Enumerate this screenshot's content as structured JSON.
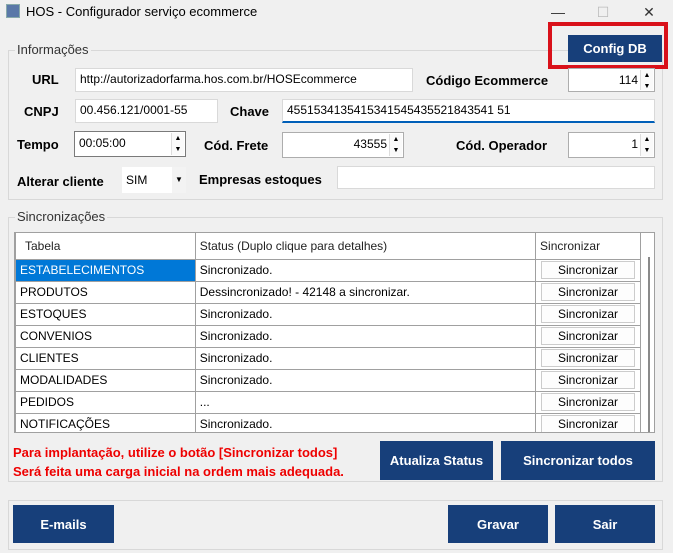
{
  "window": {
    "title": "HOS - Configurador serviço ecommerce",
    "minimize": "—",
    "maximize": "☐",
    "close": "✕"
  },
  "info": {
    "group_label": "Informações",
    "config_db": "Config DB",
    "url_label": "URL",
    "url": "http://autorizadorfarma.hos.com.br/HOSEcommerce",
    "codigo_ecommerce_label": "Código Ecommerce",
    "codigo_ecommerce": "114",
    "cnpj_label": "CNPJ",
    "cnpj": "00.456.121/0001-55",
    "chave_label": "Chave",
    "chave": "4551534135415341545435521843541 51",
    "tempo_label": "Tempo",
    "tempo": "00:05:00",
    "frete_label": "Cód. Frete",
    "frete": "43555",
    "operador_label": "Cód. Operador",
    "operador": "1",
    "alterar_label": "Alterar cliente",
    "alterar": "SIM",
    "empresas_label": "Empresas estoques",
    "empresas": ""
  },
  "sync": {
    "group_label": "Sincronizações",
    "columns": [
      "Tabela",
      "Status (Duplo clique para detalhes)",
      "Sincronizar"
    ],
    "rows": [
      {
        "tabela": "ESTABELECIMENTOS",
        "status": "Sincronizado.",
        "button": "Sincronizar"
      },
      {
        "tabela": "PRODUTOS",
        "status": "Dessincronizado! - 42148 a sincronizar.",
        "button": "Sincronizar"
      },
      {
        "tabela": "ESTOQUES",
        "status": "Sincronizado.",
        "button": "Sincronizar"
      },
      {
        "tabela": "CONVENIOS",
        "status": "Sincronizado.",
        "button": "Sincronizar"
      },
      {
        "tabela": "CLIENTES",
        "status": "Sincronizado.",
        "button": "Sincronizar"
      },
      {
        "tabela": "MODALIDADES",
        "status": "Sincronizado.",
        "button": "Sincronizar"
      },
      {
        "tabela": "PEDIDOS",
        "status": "...",
        "button": "Sincronizar"
      },
      {
        "tabela": "NOTIFICAÇÕES",
        "status": "Sincronizado.",
        "button": "Sincronizar"
      }
    ],
    "note1": "Para implantação, utilize o botão [Sincronizar todos]",
    "note2": "Será feita uma carga inicial na ordem mais adequada.",
    "atualiza": "Atualiza Status",
    "sincronizar_todos": "Sincronizar todos"
  },
  "footer": {
    "emails": "E-mails",
    "gravar": "Gravar",
    "sair": "Sair"
  }
}
